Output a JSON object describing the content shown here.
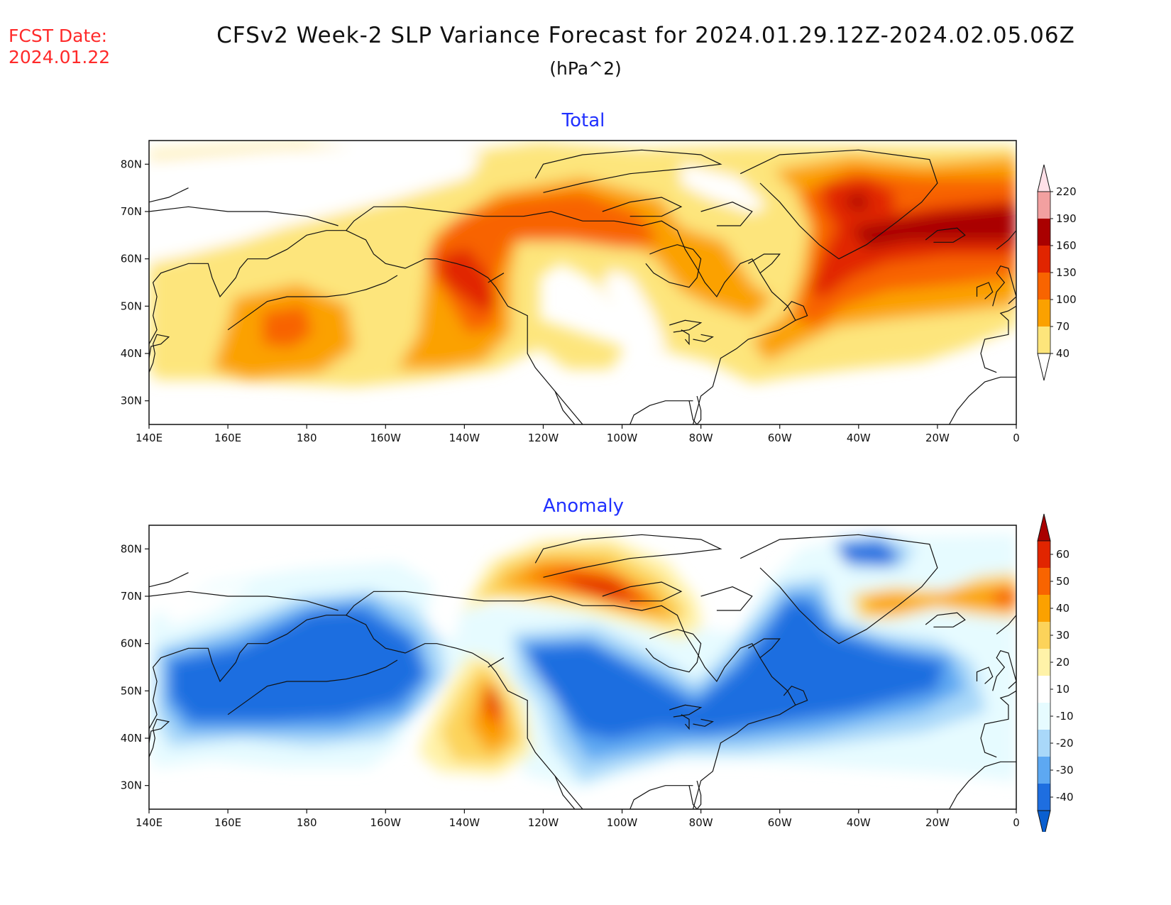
{
  "header": {
    "fcst_label": "FCST Date:",
    "fcst_date": "2024.01.22",
    "title": "CFSv2 Week-2 SLP Variance Forecast for 2024.01.29.12Z-2024.02.05.06Z",
    "units": "(hPa^2)"
  },
  "axes": {
    "lon_labels": [
      "140E",
      "160E",
      "180",
      "160W",
      "140W",
      "120W",
      "100W",
      "80W",
      "60W",
      "40W",
      "20W",
      "0"
    ],
    "lat_labels": [
      "30N",
      "40N",
      "50N",
      "60N",
      "70N",
      "80N"
    ],
    "lon_range": [
      140,
      360
    ],
    "lat_range": [
      25,
      85
    ]
  },
  "panels": [
    {
      "title": "Total",
      "colorbar": {
        "levels": [
          "40",
          "70",
          "100",
          "130",
          "160",
          "190",
          "220"
        ],
        "colors": [
          "#ffffff",
          "#fde57b",
          "#fba100",
          "#f86400",
          "#e12500",
          "#a90000",
          "#f2a0a0",
          "#ffe0e8"
        ]
      }
    },
    {
      "title": "Anomaly",
      "colorbar": {
        "levels": [
          "-40",
          "-30",
          "-20",
          "-10",
          "10",
          "20",
          "30",
          "40",
          "50",
          "60"
        ],
        "colors": [
          "#0a5fd0",
          "#1e6ee0",
          "#5da8f2",
          "#a9d8f9",
          "#e6fbff",
          "#ffffff",
          "#fff2a8",
          "#fcd35a",
          "#fba100",
          "#f86400",
          "#e12500",
          "#a90000"
        ]
      }
    }
  ]
}
